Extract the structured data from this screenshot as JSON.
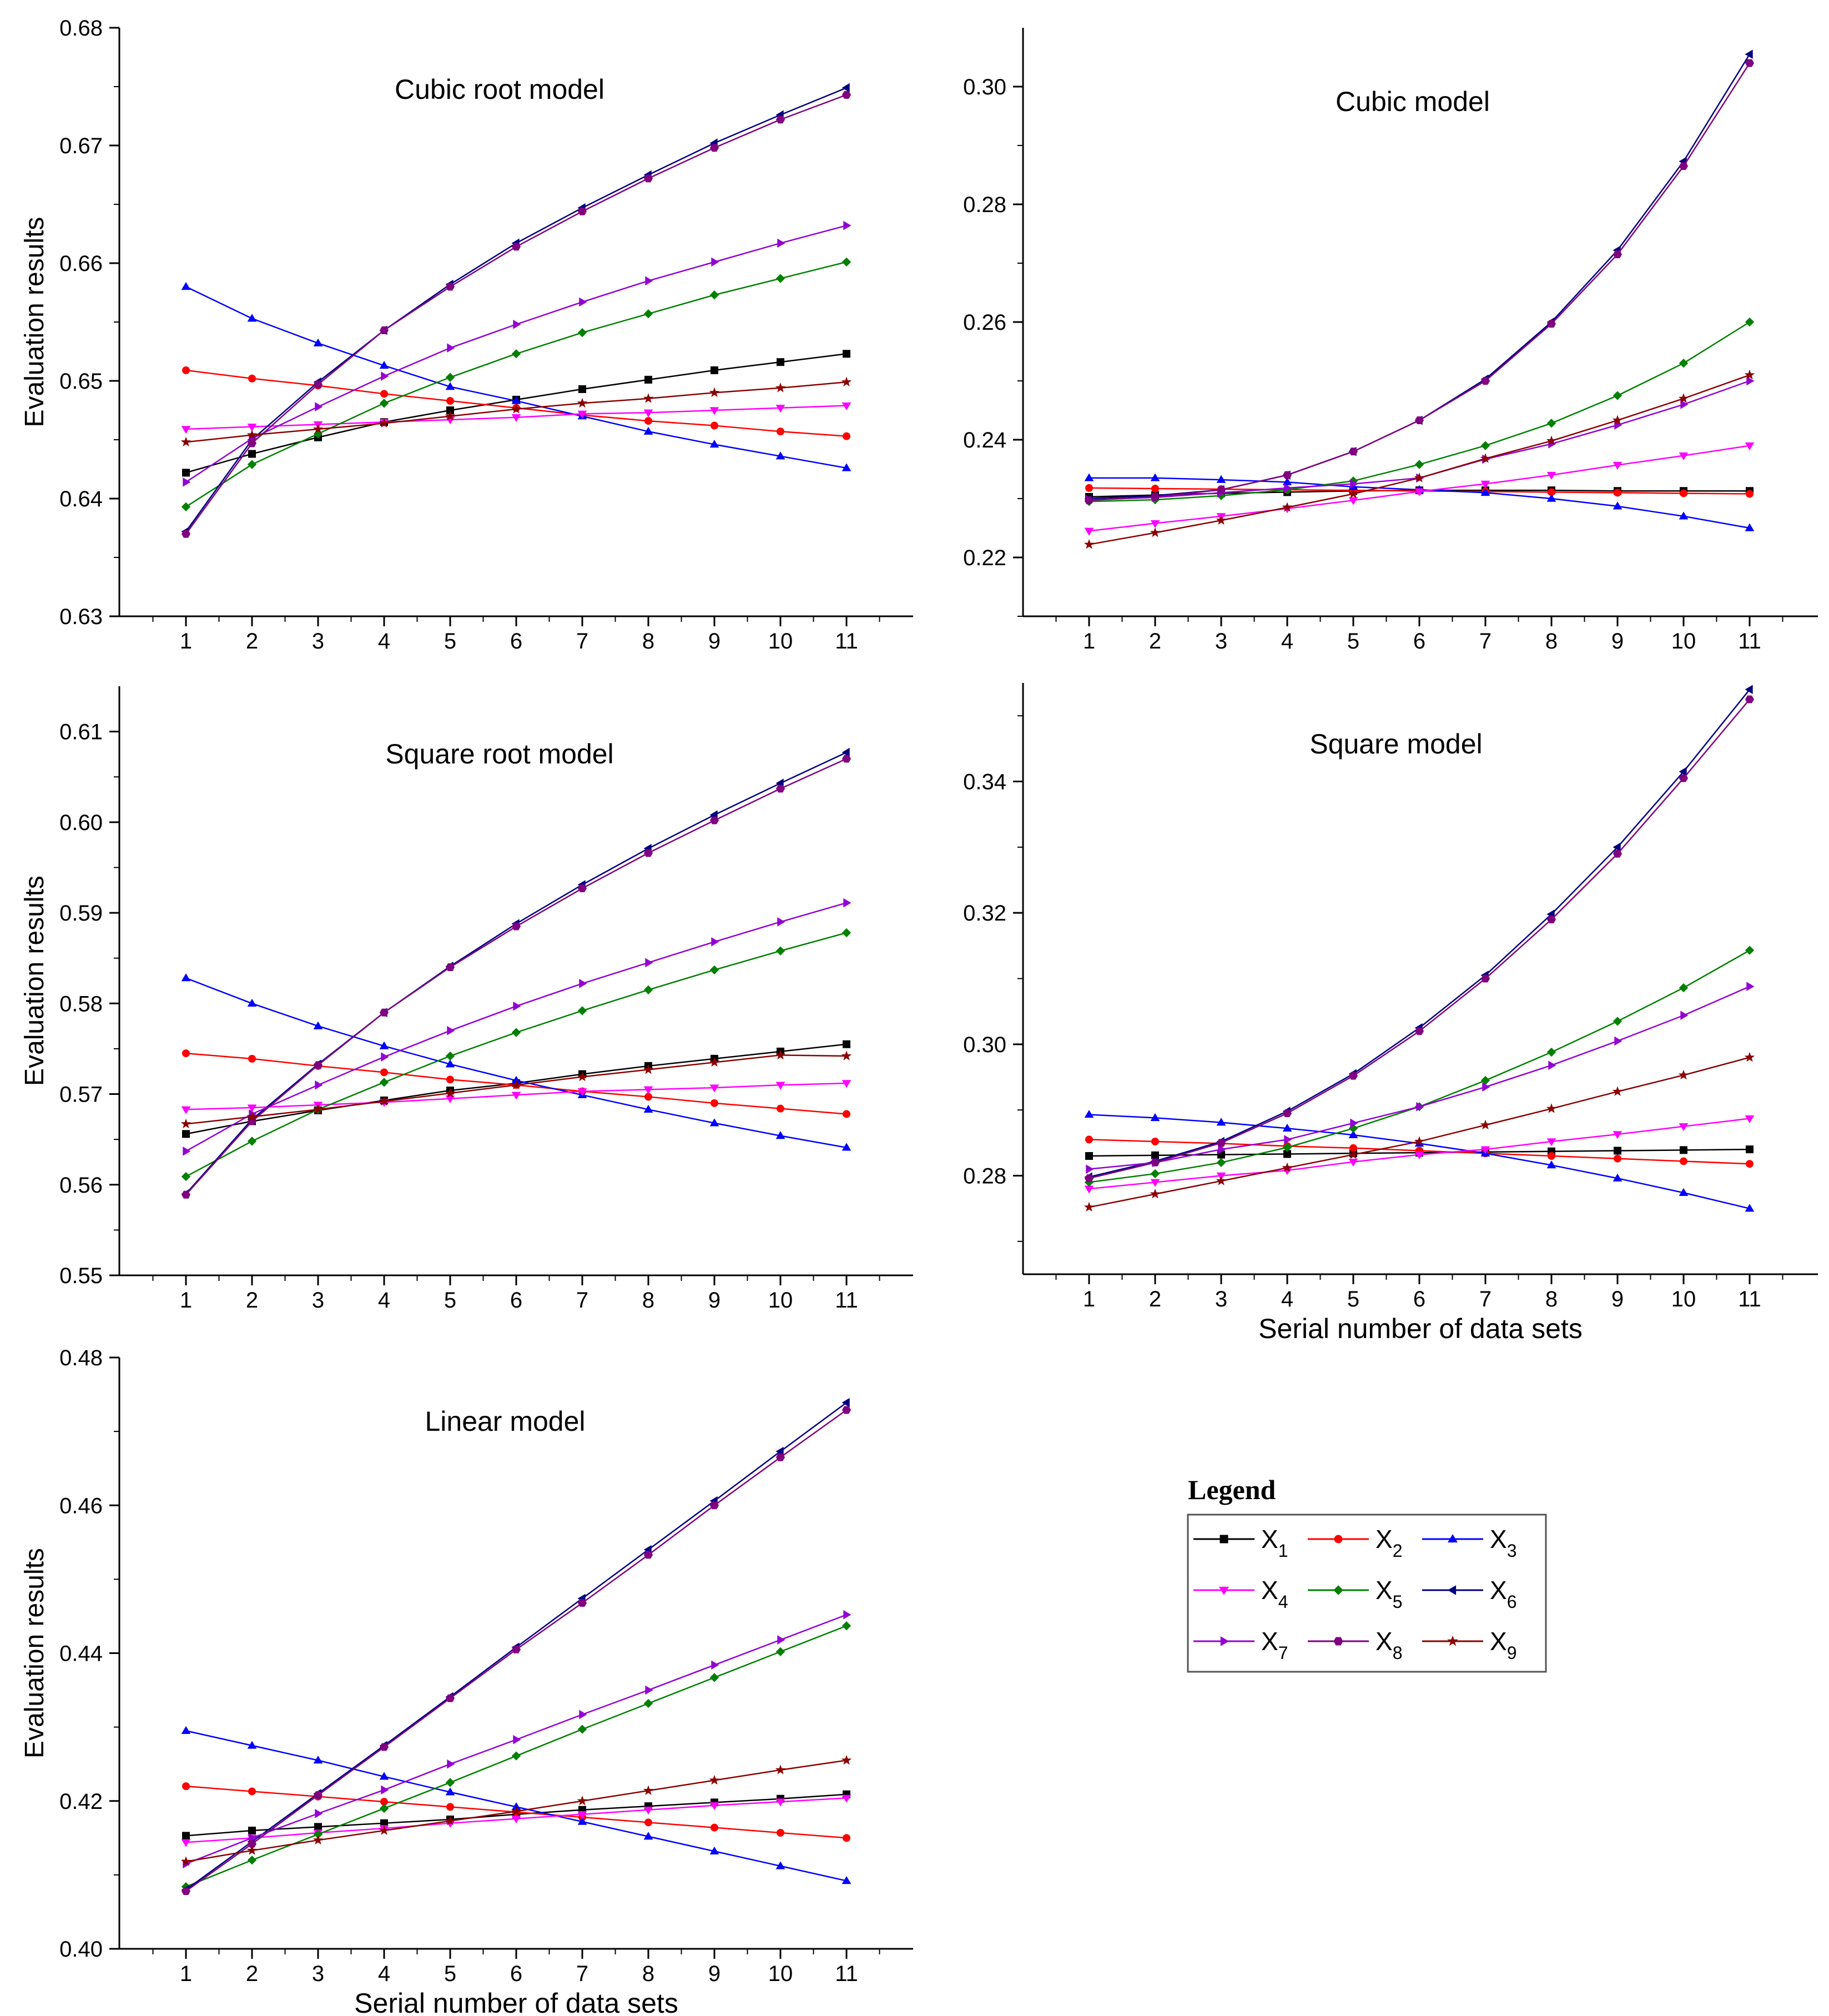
{
  "legend": {
    "title": "Legend",
    "entries": [
      {
        "id": "X1",
        "base": "X",
        "sub": "1",
        "color": "#000000",
        "marker": "square"
      },
      {
        "id": "X2",
        "base": "X",
        "sub": "2",
        "color": "#ff0000",
        "marker": "circle"
      },
      {
        "id": "X3",
        "base": "X",
        "sub": "3",
        "color": "#0000ff",
        "marker": "triangle-up"
      },
      {
        "id": "X4",
        "base": "X",
        "sub": "4",
        "color": "#ff00ff",
        "marker": "triangle-down"
      },
      {
        "id": "X5",
        "base": "X",
        "sub": "5",
        "color": "#008000",
        "marker": "diamond"
      },
      {
        "id": "X6",
        "base": "X",
        "sub": "6",
        "color": "#000080",
        "marker": "triangle-left"
      },
      {
        "id": "X7",
        "base": "X",
        "sub": "7",
        "color": "#9400d3",
        "marker": "triangle-right"
      },
      {
        "id": "X8",
        "base": "X",
        "sub": "8",
        "color": "#800080",
        "marker": "hexagon"
      },
      {
        "id": "X9",
        "base": "X",
        "sub": "9",
        "color": "#8b0000",
        "marker": "star"
      }
    ]
  },
  "chart_data": [
    {
      "type": "line",
      "title": "Cubic root model",
      "xlabel": "",
      "ylabel": "Evaluation results",
      "x": [
        1,
        2,
        3,
        4,
        5,
        6,
        7,
        8,
        9,
        10,
        11
      ],
      "ylim": [
        0.63,
        0.68
      ],
      "yticks": [
        "0.63",
        "0.64",
        "0.65",
        "0.66",
        "0.67",
        "0.68"
      ],
      "grid": false,
      "series": [
        {
          "name": "X1",
          "values": [
            0.6422,
            0.6438,
            0.6452,
            0.6465,
            0.6475,
            0.6484,
            0.6493,
            0.6501,
            0.6509,
            0.6516,
            0.6523
          ]
        },
        {
          "name": "X2",
          "values": [
            0.6509,
            0.6502,
            0.6496,
            0.6489,
            0.6483,
            0.6477,
            0.6471,
            0.6466,
            0.6462,
            0.6457,
            0.6453
          ]
        },
        {
          "name": "X3",
          "values": [
            0.658,
            0.6553,
            0.6532,
            0.6513,
            0.6495,
            0.6483,
            0.647,
            0.6457,
            0.6446,
            0.6436,
            0.6426
          ]
        },
        {
          "name": "X4",
          "values": [
            0.6459,
            0.6461,
            0.6463,
            0.6465,
            0.6467,
            0.6469,
            0.6472,
            0.6473,
            0.6475,
            0.6477,
            0.6479
          ]
        },
        {
          "name": "X5",
          "values": [
            0.6393,
            0.6429,
            0.6455,
            0.6481,
            0.6503,
            0.6523,
            0.6541,
            0.6557,
            0.6573,
            0.6587,
            0.6601
          ]
        },
        {
          "name": "X6",
          "values": [
            0.6372,
            0.645,
            0.6499,
            0.6543,
            0.6582,
            0.6617,
            0.6647,
            0.6675,
            0.6702,
            0.6726,
            0.6749
          ]
        },
        {
          "name": "X7",
          "values": [
            0.6414,
            0.6451,
            0.6478,
            0.6504,
            0.6528,
            0.6548,
            0.6567,
            0.6585,
            0.6601,
            0.6617,
            0.6632
          ]
        },
        {
          "name": "X8",
          "values": [
            0.637,
            0.6447,
            0.6497,
            0.6543,
            0.658,
            0.6614,
            0.6644,
            0.6672,
            0.6698,
            0.6722,
            0.6743
          ]
        },
        {
          "name": "X9",
          "values": [
            0.6448,
            0.6454,
            0.6459,
            0.6464,
            0.647,
            0.6476,
            0.6481,
            0.6485,
            0.649,
            0.6494,
            0.6499
          ]
        }
      ]
    },
    {
      "type": "line",
      "title": "Cubic model",
      "xlabel": "",
      "ylabel": "",
      "x": [
        1,
        2,
        3,
        4,
        5,
        6,
        7,
        8,
        9,
        10,
        11
      ],
      "ylim": [
        0.21,
        0.31
      ],
      "yticks": [
        "0.22",
        "0.24",
        "0.26",
        "0.28",
        "0.30"
      ],
      "grid": false,
      "series": [
        {
          "name": "X1",
          "values": [
            0.2303,
            0.2306,
            0.2309,
            0.2311,
            0.2313,
            0.2314,
            0.2314,
            0.2314,
            0.2313,
            0.2313,
            0.2313
          ]
        },
        {
          "name": "X2",
          "values": [
            0.2318,
            0.2317,
            0.2316,
            0.2315,
            0.2314,
            0.2313,
            0.2312,
            0.2311,
            0.231,
            0.2309,
            0.2308
          ]
        },
        {
          "name": "X3",
          "values": [
            0.2335,
            0.2335,
            0.2332,
            0.2328,
            0.232,
            0.2315,
            0.231,
            0.23,
            0.2287,
            0.227,
            0.225
          ]
        },
        {
          "name": "X4",
          "values": [
            0.2245,
            0.2258,
            0.227,
            0.2283,
            0.2297,
            0.2312,
            0.2325,
            0.234,
            0.2357,
            0.2373,
            0.239
          ]
        },
        {
          "name": "X5",
          "values": [
            0.2295,
            0.2298,
            0.2305,
            0.2315,
            0.233,
            0.2358,
            0.239,
            0.2428,
            0.2475,
            0.253,
            0.26
          ]
        },
        {
          "name": "X6",
          "values": [
            0.23,
            0.2305,
            0.2315,
            0.234,
            0.238,
            0.2433,
            0.2503,
            0.26,
            0.2722,
            0.2873,
            0.3055
          ]
        },
        {
          "name": "X7",
          "values": [
            0.2298,
            0.2302,
            0.231,
            0.2318,
            0.2325,
            0.2335,
            0.2367,
            0.2393,
            0.2425,
            0.246,
            0.25
          ]
        },
        {
          "name": "X8",
          "values": [
            0.2297,
            0.2303,
            0.2315,
            0.234,
            0.238,
            0.2433,
            0.25,
            0.2597,
            0.2715,
            0.2865,
            0.304
          ]
        },
        {
          "name": "X9",
          "values": [
            0.2222,
            0.2242,
            0.2263,
            0.2285,
            0.2308,
            0.2335,
            0.2368,
            0.2398,
            0.2433,
            0.247,
            0.251
          ]
        }
      ]
    },
    {
      "type": "line",
      "title": "Square root model",
      "xlabel": "",
      "ylabel": "Evaluation results",
      "x": [
        1,
        2,
        3,
        4,
        5,
        6,
        7,
        8,
        9,
        10,
        11
      ],
      "ylim": [
        0.55,
        0.615
      ],
      "yticks": [
        "0.55",
        "0.56",
        "0.57",
        "0.58",
        "0.59",
        "0.60",
        "0.61"
      ],
      "grid": false,
      "series": [
        {
          "name": "X1",
          "values": [
            0.5656,
            0.567,
            0.5682,
            0.5693,
            0.5704,
            0.5712,
            0.5722,
            0.5731,
            0.5739,
            0.5747,
            0.5755
          ]
        },
        {
          "name": "X2",
          "values": [
            0.5745,
            0.5739,
            0.5731,
            0.5724,
            0.5716,
            0.571,
            0.5703,
            0.5697,
            0.569,
            0.5684,
            0.5678
          ]
        },
        {
          "name": "X3",
          "values": [
            0.5828,
            0.58,
            0.5775,
            0.5753,
            0.5733,
            0.5715,
            0.5699,
            0.5683,
            0.5668,
            0.5654,
            0.5641
          ]
        },
        {
          "name": "X4",
          "values": [
            0.5683,
            0.5685,
            0.5688,
            0.5691,
            0.5695,
            0.5699,
            0.5703,
            0.5705,
            0.5707,
            0.571,
            0.5712
          ]
        },
        {
          "name": "X5",
          "values": [
            0.5609,
            0.5648,
            0.5683,
            0.5713,
            0.5742,
            0.5768,
            0.5792,
            0.5815,
            0.5837,
            0.5858,
            0.5878
          ]
        },
        {
          "name": "X6",
          "values": [
            0.559,
            0.5672,
            0.5733,
            0.579,
            0.5841,
            0.5888,
            0.5931,
            0.5971,
            0.6008,
            0.6043,
            0.6077
          ]
        },
        {
          "name": "X7",
          "values": [
            0.5637,
            0.5678,
            0.571,
            0.5741,
            0.577,
            0.5797,
            0.5822,
            0.5845,
            0.5868,
            0.589,
            0.5911
          ]
        },
        {
          "name": "X8",
          "values": [
            0.5589,
            0.567,
            0.5732,
            0.579,
            0.584,
            0.5885,
            0.5927,
            0.5966,
            0.6002,
            0.6037,
            0.607
          ]
        },
        {
          "name": "X9",
          "values": [
            0.5667,
            0.5675,
            0.5683,
            0.5692,
            0.5701,
            0.571,
            0.5719,
            0.5727,
            0.5735,
            0.5743,
            0.5742
          ]
        }
      ]
    },
    {
      "type": "line",
      "title": "Square model",
      "xlabel": "Serial number of data sets",
      "ylabel": "",
      "x": [
        1,
        2,
        3,
        4,
        5,
        6,
        7,
        8,
        9,
        10,
        11
      ],
      "ylim": [
        0.265,
        0.355
      ],
      "yticks": [
        "0.28",
        "0.30",
        "0.32",
        "0.34"
      ],
      "grid": false,
      "series": [
        {
          "name": "X1",
          "values": [
            0.283,
            0.2831,
            0.2832,
            0.2833,
            0.2834,
            0.2835,
            0.2836,
            0.2837,
            0.2838,
            0.2839,
            0.284
          ]
        },
        {
          "name": "X2",
          "values": [
            0.2855,
            0.2852,
            0.2849,
            0.2845,
            0.2842,
            0.2838,
            0.2834,
            0.283,
            0.2826,
            0.2822,
            0.2818
          ]
        },
        {
          "name": "X3",
          "values": [
            0.2893,
            0.2888,
            0.2881,
            0.2872,
            0.2862,
            0.2849,
            0.2834,
            0.2816,
            0.2796,
            0.2774,
            0.275
          ]
        },
        {
          "name": "X4",
          "values": [
            0.278,
            0.279,
            0.28,
            0.2808,
            0.2821,
            0.2832,
            0.284,
            0.2852,
            0.2863,
            0.2875,
            0.2887
          ]
        },
        {
          "name": "X5",
          "values": [
            0.279,
            0.2803,
            0.282,
            0.2843,
            0.2872,
            0.2905,
            0.2945,
            0.2988,
            0.3035,
            0.3086,
            0.3143
          ]
        },
        {
          "name": "X6",
          "values": [
            0.2798,
            0.2822,
            0.2852,
            0.2898,
            0.2955,
            0.3025,
            0.3105,
            0.3198,
            0.33,
            0.3415,
            0.354
          ]
        },
        {
          "name": "X7",
          "values": [
            0.281,
            0.282,
            0.284,
            0.2855,
            0.288,
            0.2905,
            0.2935,
            0.2968,
            0.3005,
            0.3044,
            0.3088
          ]
        },
        {
          "name": "X8",
          "values": [
            0.2796,
            0.282,
            0.285,
            0.2895,
            0.2952,
            0.302,
            0.31,
            0.319,
            0.329,
            0.3405,
            0.3525
          ]
        },
        {
          "name": "X9",
          "values": [
            0.2752,
            0.2772,
            0.2792,
            0.2812,
            0.2832,
            0.2852,
            0.2877,
            0.2902,
            0.2928,
            0.2953,
            0.298
          ]
        }
      ]
    },
    {
      "type": "line",
      "title": "Linear model",
      "xlabel": "Serial number of data sets",
      "ylabel": "Evaluation results",
      "x": [
        1,
        2,
        3,
        4,
        5,
        6,
        7,
        8,
        9,
        10,
        11
      ],
      "ylim": [
        0.4,
        0.48
      ],
      "yticks": [
        "0.40",
        "0.42",
        "0.44",
        "0.46",
        "0.48"
      ],
      "grid": false,
      "series": [
        {
          "name": "X1",
          "values": [
            0.4153,
            0.416,
            0.4165,
            0.417,
            0.4175,
            0.4182,
            0.4188,
            0.4193,
            0.4198,
            0.4203,
            0.4209
          ]
        },
        {
          "name": "X2",
          "values": [
            0.422,
            0.4213,
            0.4206,
            0.4199,
            0.4192,
            0.4185,
            0.4178,
            0.4171,
            0.4164,
            0.4157,
            0.415
          ]
        },
        {
          "name": "X3",
          "values": [
            0.4295,
            0.4275,
            0.4255,
            0.4233,
            0.4212,
            0.4192,
            0.4172,
            0.4152,
            0.4132,
            0.4112,
            0.4092
          ]
        },
        {
          "name": "X4",
          "values": [
            0.4144,
            0.415,
            0.4157,
            0.4163,
            0.417,
            0.4176,
            0.4182,
            0.4188,
            0.4194,
            0.4199,
            0.4204
          ]
        },
        {
          "name": "X5",
          "values": [
            0.4084,
            0.412,
            0.4155,
            0.419,
            0.4225,
            0.4261,
            0.4297,
            0.4332,
            0.4367,
            0.4402,
            0.4437
          ]
        },
        {
          "name": "X6",
          "values": [
            0.408,
            0.4145,
            0.421,
            0.4275,
            0.4341,
            0.4408,
            0.4474,
            0.454,
            0.4606,
            0.4673,
            0.4739
          ]
        },
        {
          "name": "X7",
          "values": [
            0.4115,
            0.415,
            0.4183,
            0.4215,
            0.425,
            0.4283,
            0.4317,
            0.435,
            0.4384,
            0.4418,
            0.4452
          ]
        },
        {
          "name": "X8",
          "values": [
            0.4078,
            0.4142,
            0.4208,
            0.4273,
            0.4339,
            0.4405,
            0.4468,
            0.4533,
            0.46,
            0.4665,
            0.4729
          ]
        },
        {
          "name": "X9",
          "values": [
            0.4118,
            0.4133,
            0.4147,
            0.416,
            0.4173,
            0.4186,
            0.42,
            0.4214,
            0.4228,
            0.4242,
            0.4255
          ]
        }
      ]
    }
  ]
}
